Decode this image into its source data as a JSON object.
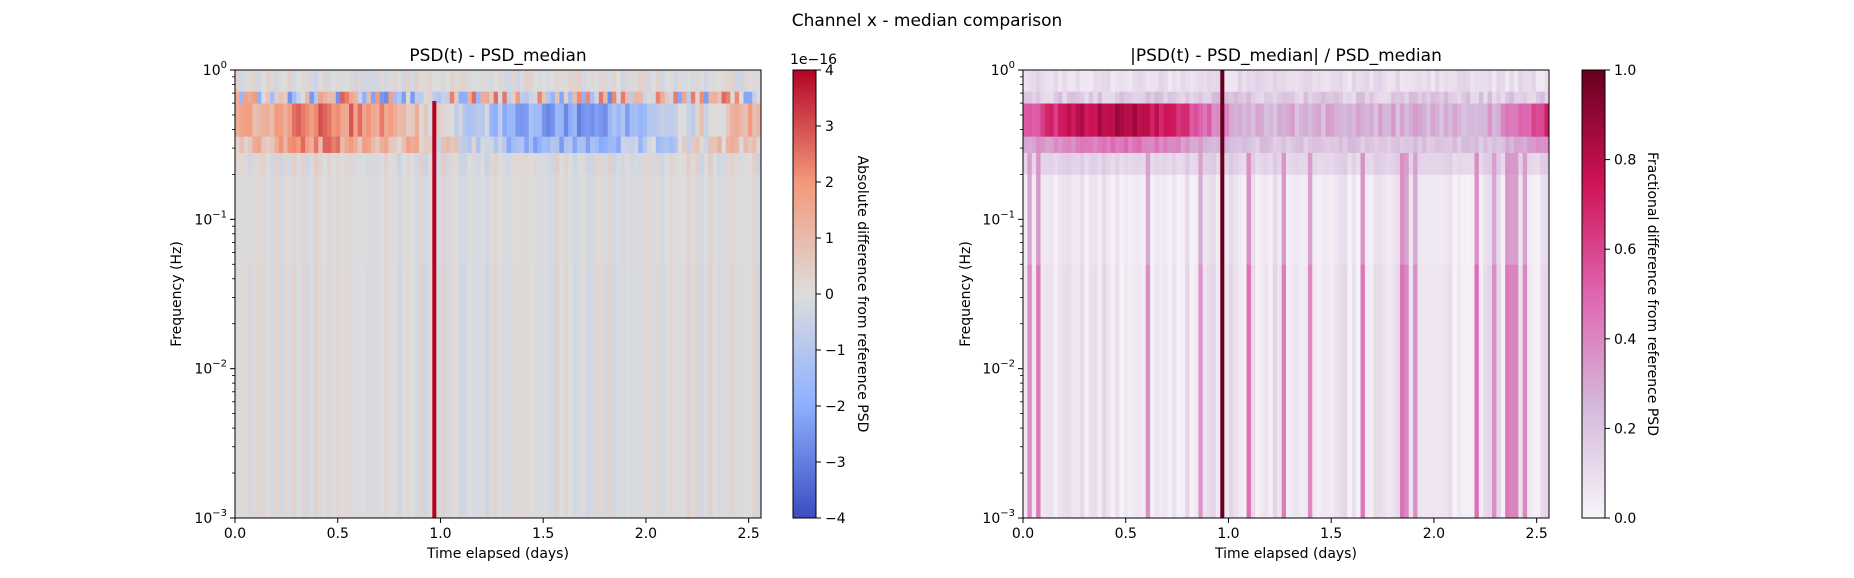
{
  "suptitle": "Channel x - median comparison",
  "chart_data": [
    {
      "type": "heatmap",
      "title": "PSD(t) - PSD_median",
      "xlabel": "Time elapsed (days)",
      "ylabel": "Frequency (Hz)",
      "xlim": [
        0.0,
        2.56
      ],
      "ylim": [
        0.001,
        1.0
      ],
      "yscale": "log",
      "xticks": [
        0.0,
        0.5,
        1.0,
        1.5,
        2.0,
        2.5
      ],
      "xtick_labels": [
        "0.0",
        "0.5",
        "1.0",
        "1.5",
        "2.0",
        "2.5"
      ],
      "ytick_exponents": [
        "0",
        "-1",
        "-2",
        "-3"
      ],
      "colormap": "coolwarm",
      "colorbar": {
        "label": "Absolute difference from reference PSD",
        "offset_text": "1e−16",
        "ticks": [
          4,
          3,
          2,
          1,
          0,
          -1,
          -2,
          -3,
          -4
        ],
        "tick_labels": [
          "4",
          "3",
          "2",
          "1",
          "0",
          "−1",
          "−2",
          "−3",
          "−4"
        ],
        "range": [
          -4,
          4
        ]
      },
      "features": {
        "transient_day": 0.97,
        "band_low_hz": [
          0.25,
          0.4
        ],
        "band_high_hz": [
          0.6,
          0.72
        ]
      }
    },
    {
      "type": "heatmap",
      "title": "|PSD(t) - PSD_median| / PSD_median",
      "xlabel": "Time elapsed (days)",
      "ylabel": "Frequency (Hz)",
      "xlim": [
        0.0,
        2.56
      ],
      "ylim": [
        0.001,
        1.0
      ],
      "yscale": "log",
      "xticks": [
        0.0,
        0.5,
        1.0,
        1.5,
        2.0,
        2.5
      ],
      "xtick_labels": [
        "0.0",
        "0.5",
        "1.0",
        "1.5",
        "2.0",
        "2.5"
      ],
      "ytick_exponents": [
        "0",
        "-1",
        "-2",
        "-3"
      ],
      "colormap": "PuRd",
      "colorbar": {
        "label": "Fractional difference from reference PSD",
        "ticks": [
          1.0,
          0.8,
          0.6,
          0.4,
          0.2,
          0.0
        ],
        "tick_labels": [
          "1.0",
          "0.8",
          "0.6",
          "0.4",
          "0.2",
          "0.0"
        ],
        "range": [
          0,
          1
        ]
      },
      "features": {
        "transient_day": 0.97,
        "band_hz": [
          0.35,
          0.6
        ]
      }
    }
  ]
}
